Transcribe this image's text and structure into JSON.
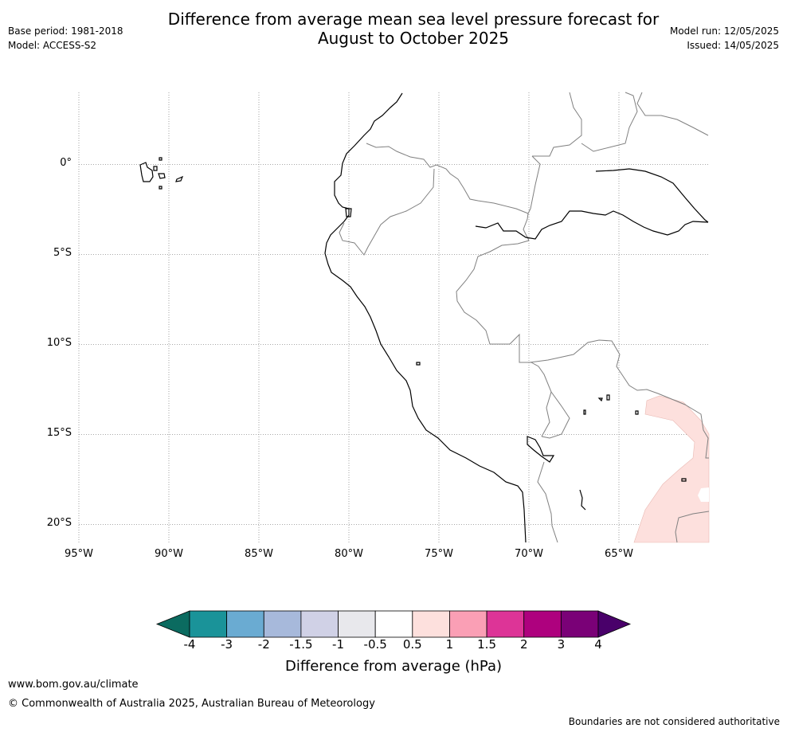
{
  "header": {
    "title_line1": "Difference from average mean sea level pressure forecast for",
    "title_line2": "August to October 2025",
    "base_period": "Base period: 1981-2018",
    "model": "Model: ACCESS-S2",
    "model_run": "Model run: 12/05/2025",
    "issued": "Issued: 14/05/2025"
  },
  "map": {
    "lat_labels": [
      "0°",
      "5°S",
      "10°S",
      "15°S",
      "20°S"
    ],
    "lon_labels": [
      "95°W",
      "90°W",
      "85°W",
      "80°W",
      "75°W",
      "70°W",
      "65°W"
    ],
    "lat_values": [
      0,
      -5,
      -10,
      -15,
      -20
    ],
    "lon_values": [
      -95,
      -90,
      -85,
      -80,
      -75,
      -70,
      -65
    ],
    "extent": {
      "lon_min": -95,
      "lon_max": -60,
      "lat_min": -21,
      "lat_max": 4
    },
    "anomaly_region_category": "0.5 to 1"
  },
  "colorbar": {
    "title": "Difference from average (hPa)",
    "ticks": [
      "-4",
      "-3",
      "-2",
      "-1.5",
      "-1",
      "-0.5",
      "0.5",
      "1",
      "1.5",
      "2",
      "3",
      "4"
    ],
    "colors": [
      "#0b6b60",
      "#1a9399",
      "#6aabd2",
      "#a7b9db",
      "#d0d1e6",
      "#e8e8ec",
      "#ffffff",
      "#fde0dd",
      "#fa9fb5",
      "#dd3497",
      "#ae017e",
      "#7a0177",
      "#49006a"
    ]
  },
  "footer": {
    "website": "www.bom.gov.au/climate",
    "copyright": "© Commonwealth of Australia 2025, Australian Bureau of Meteorology",
    "disclaimer": "Boundaries are not considered authoritative"
  }
}
